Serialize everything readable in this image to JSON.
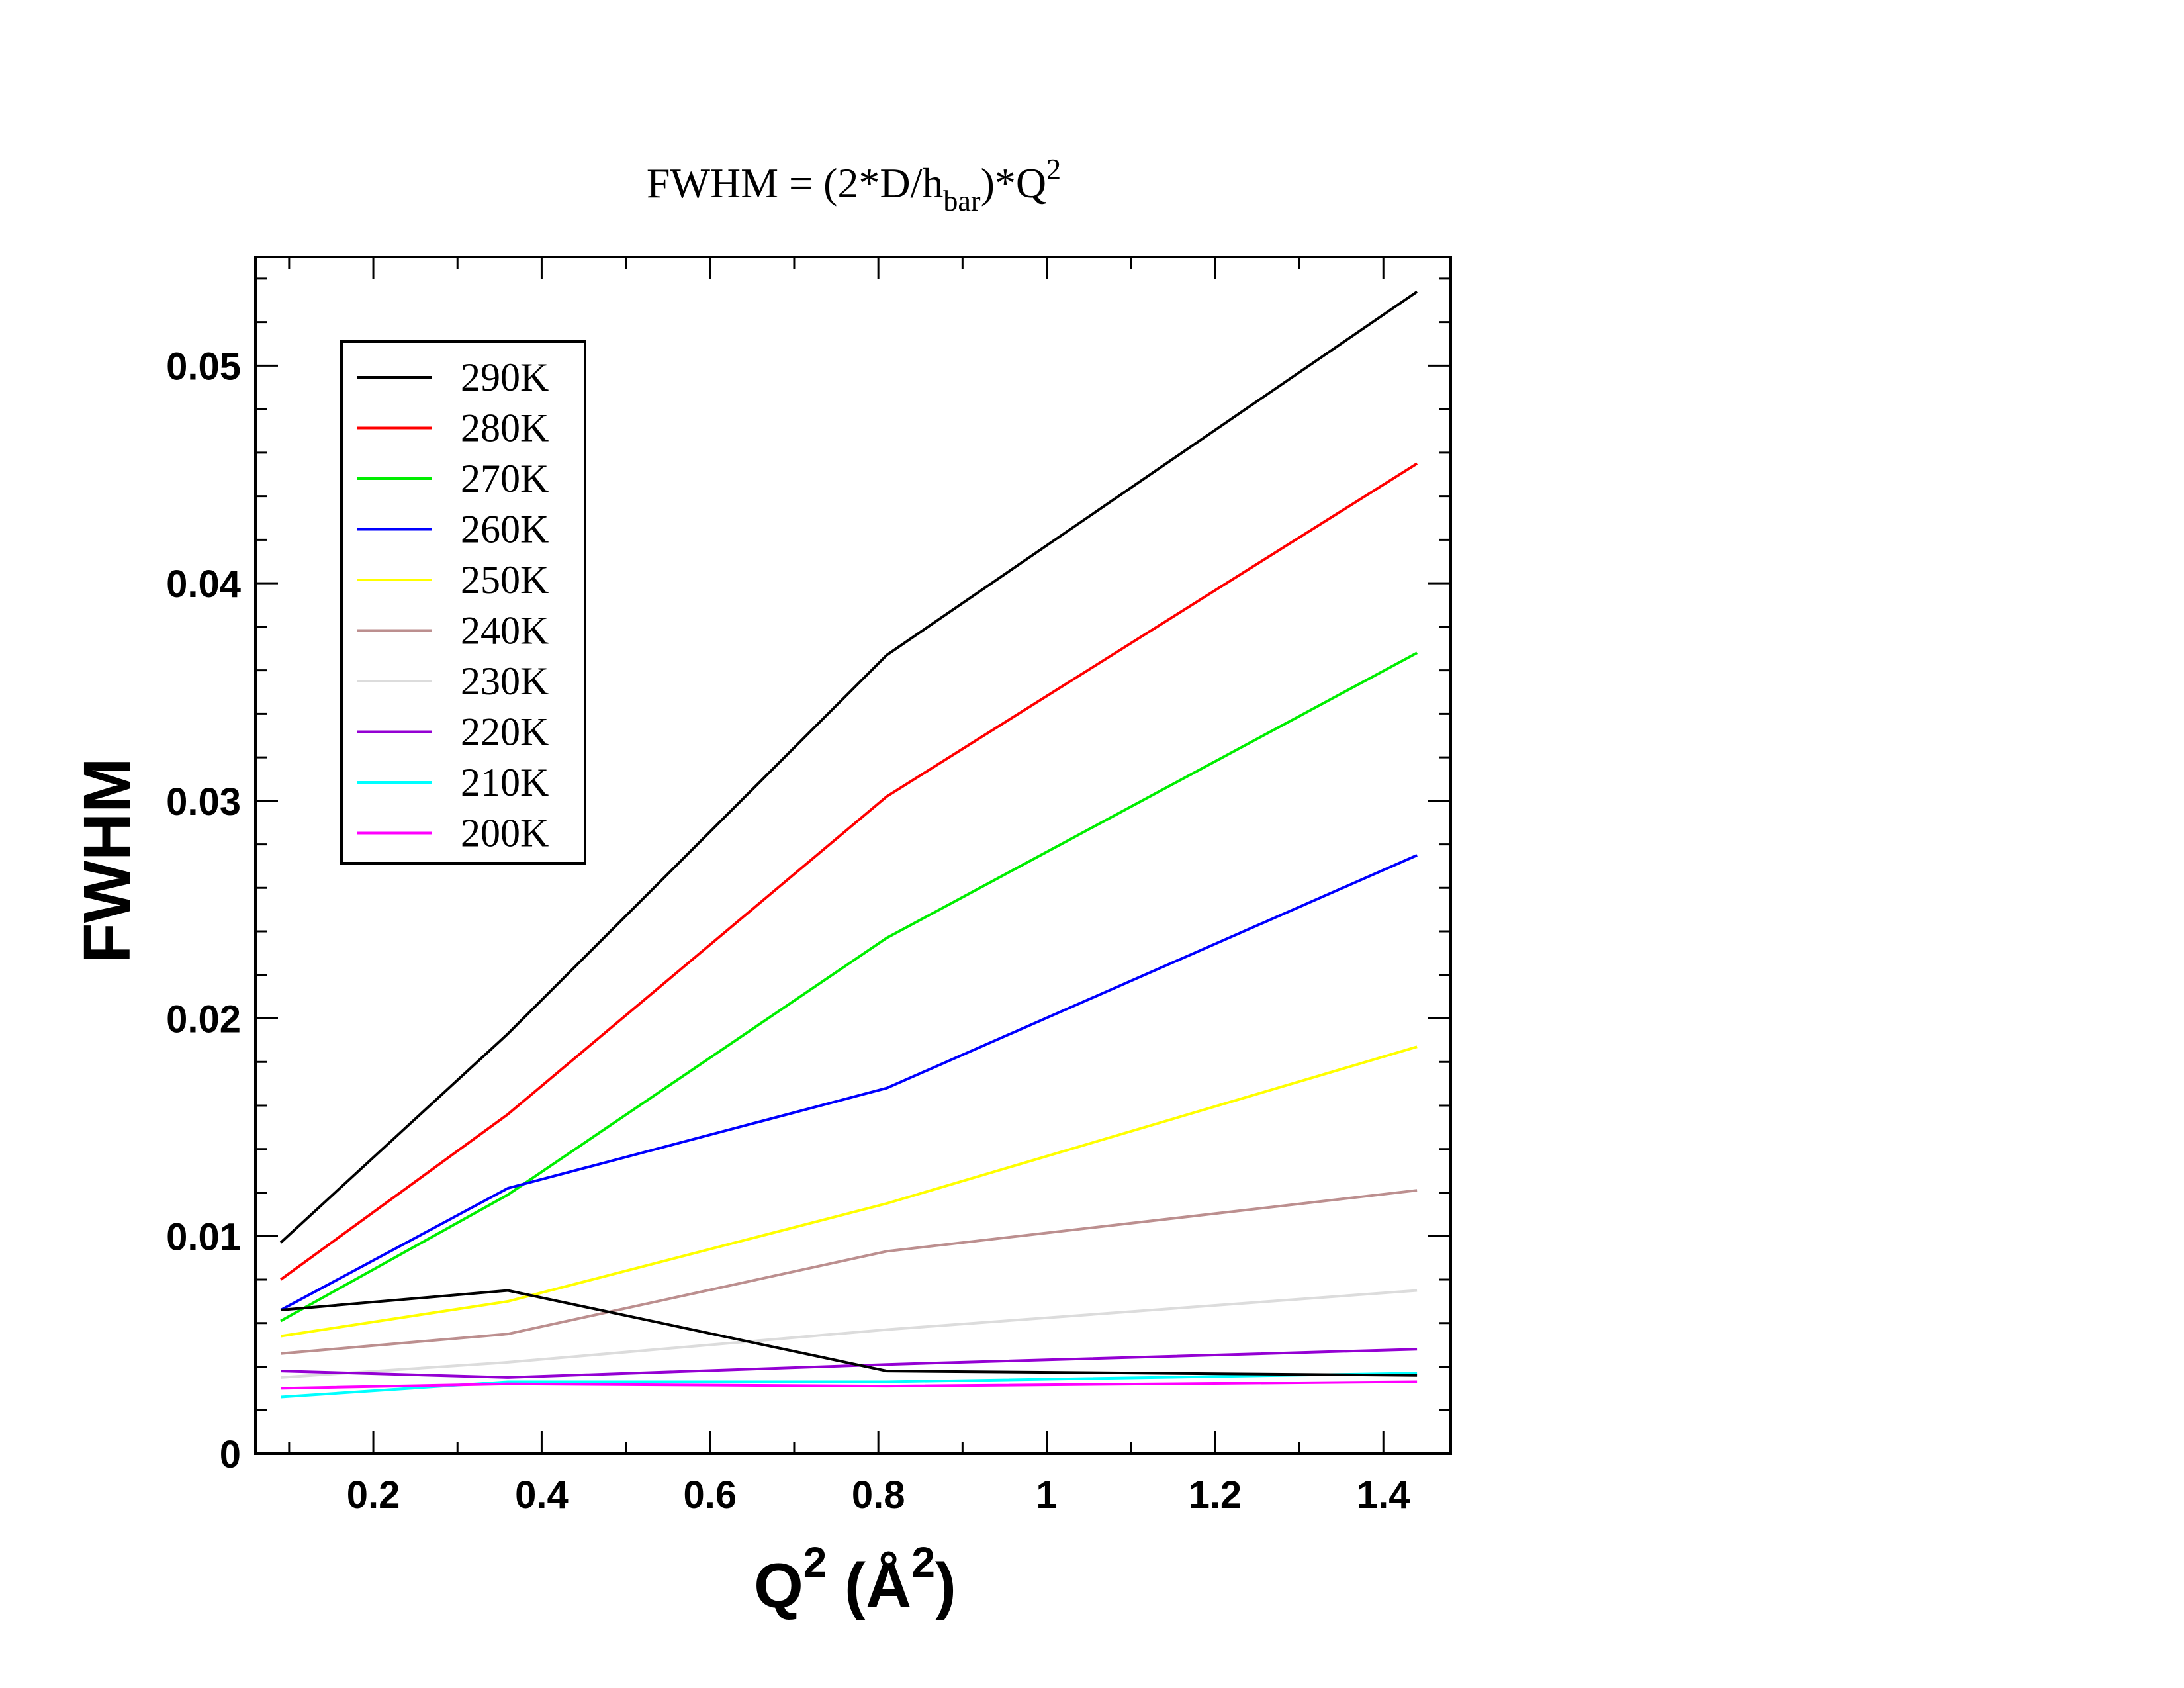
{
  "chart_data": {
    "type": "line",
    "title": {
      "prefix": "FWHM = (2*D/h",
      "subscript": "bar",
      "middle": ")*Q",
      "superscript": "2"
    },
    "ylabel": "FWHM",
    "xlabel": {
      "base": "Q",
      "sup1": "2",
      "middle": " (Å",
      "sup2": "2",
      "end": ")"
    },
    "xlim": [
      0.06,
      1.48
    ],
    "ylim": [
      0,
      0.055
    ],
    "x_ticks": [
      0.2,
      0.4,
      0.6,
      0.8,
      1.0,
      1.2,
      1.4
    ],
    "x_tick_labels": [
      "0.2",
      "0.4",
      "0.6",
      "0.8",
      "1",
      "1.2",
      "1.4"
    ],
    "x_minor_step": 0.1,
    "y_ticks": [
      0,
      0.01,
      0.02,
      0.03,
      0.04,
      0.05
    ],
    "y_tick_labels": [
      "0",
      "0.01",
      "0.02",
      "0.03",
      "0.04",
      "0.05"
    ],
    "y_minor_step": 0.002,
    "legend_position": "top-left",
    "x": [
      0.09,
      0.36,
      0.81,
      1.44
    ],
    "series": [
      {
        "name": "290K",
        "color": "#000000",
        "values": [
          0.0097,
          0.0193,
          0.0367,
          0.0534
        ]
      },
      {
        "name": "280K",
        "color": "#ff0000",
        "values": [
          0.008,
          0.0156,
          0.0302,
          0.0455
        ]
      },
      {
        "name": "270K",
        "color": "#00ee00",
        "values": [
          0.0061,
          0.0119,
          0.0237,
          0.0368
        ]
      },
      {
        "name": "260K",
        "color": "#0000ff",
        "values": [
          0.0066,
          0.0122,
          0.0168,
          0.0275
        ]
      },
      {
        "name": "250K",
        "color": "#ffff00",
        "values": [
          0.0054,
          0.007,
          0.0115,
          0.0187
        ]
      },
      {
        "name": "240K",
        "color": "#bc8f8f",
        "values": [
          0.0046,
          0.0055,
          0.0093,
          0.0121
        ]
      },
      {
        "name": "230K",
        "color": "#dcdcdc",
        "values": [
          0.0035,
          0.0042,
          0.0057,
          0.0075
        ]
      },
      {
        "name": "220K",
        "color": "#9400d3",
        "values": [
          0.0038,
          0.0035,
          0.0041,
          0.0048
        ]
      },
      {
        "name": "210K",
        "color": "#00ffff",
        "values": [
          0.0026,
          0.0033,
          0.0033,
          0.0037
        ]
      },
      {
        "name": "200K",
        "color": "#ff00ff",
        "values": [
          0.003,
          0.0032,
          0.0031,
          0.0033
        ]
      },
      {
        "color": "#000000",
        "values": [
          0.0066,
          0.0075,
          0.0038,
          0.0036
        ]
      }
    ]
  }
}
